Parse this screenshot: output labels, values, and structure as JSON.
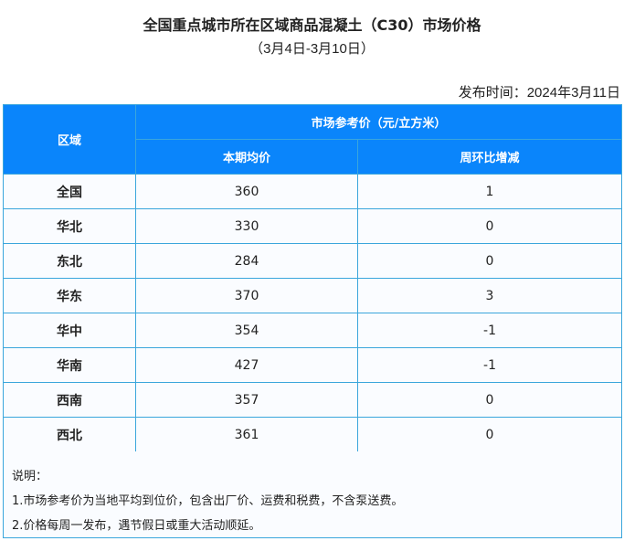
{
  "title": "全国重点城市所在区域商品混凝土（C30）市场价格",
  "subtitle": "（3月4日-3月10日）",
  "publish_date": "发布时间：2024年3月11日",
  "table": {
    "col_region": "区域",
    "col_group": "市场参考价（元/立方米）",
    "col_price": "本期均价",
    "col_change": "周环比增减",
    "rows": [
      {
        "region": "全国",
        "price": "360",
        "change": "1"
      },
      {
        "region": "华北",
        "price": "330",
        "change": "0"
      },
      {
        "region": "东北",
        "price": "284",
        "change": "0"
      },
      {
        "region": "华东",
        "price": "370",
        "change": "3"
      },
      {
        "region": "华中",
        "price": "354",
        "change": "-1"
      },
      {
        "region": "华南",
        "price": "427",
        "change": "-1"
      },
      {
        "region": "西南",
        "price": "357",
        "change": "0"
      },
      {
        "region": "西北",
        "price": "361",
        "change": "0"
      }
    ]
  },
  "notes": {
    "heading": "说明：",
    "lines": [
      "1.市场参考价为当地平均到位价，包含出厂价、运费和税费，不含泵送费。",
      "2.价格每周一发布，遇节假日或重大活动顺延。"
    ]
  },
  "colors": {
    "header": "#0a85fb",
    "border": "#3aa6dc"
  }
}
